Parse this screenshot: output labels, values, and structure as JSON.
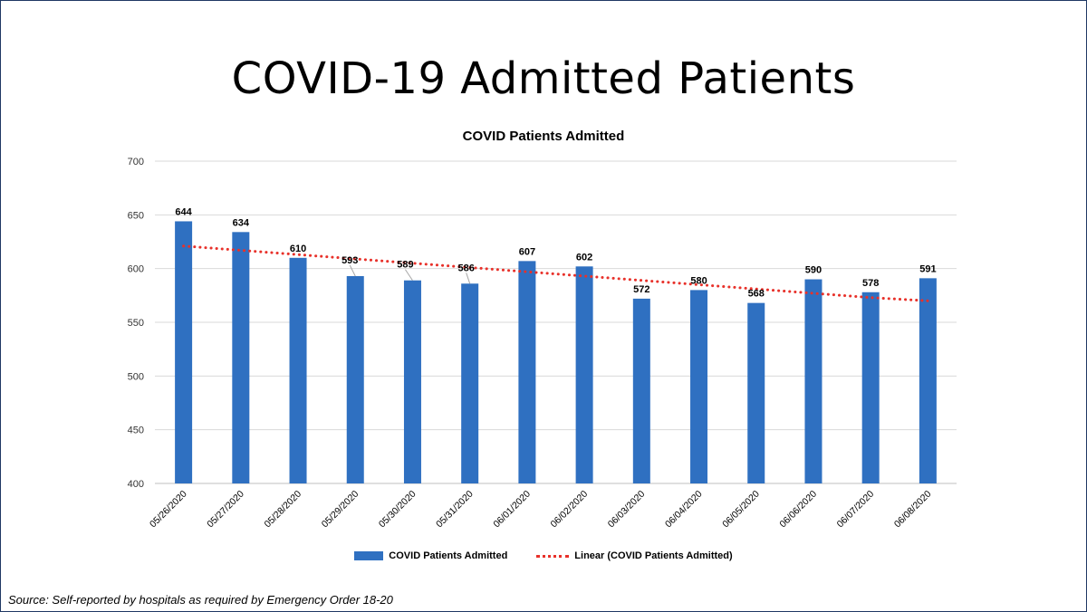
{
  "slide": {
    "title": "COVID-19 Admitted Patients",
    "source": "Source: Self-reported by hospitals as required by Emergency Order 18-20"
  },
  "chart_data": {
    "type": "bar",
    "title": "COVID Patients Admitted",
    "xlabel": "",
    "ylabel": "",
    "ylim": [
      400,
      700
    ],
    "yticks": [
      400,
      450,
      500,
      550,
      600,
      650,
      700
    ],
    "categories": [
      "05/26/2020",
      "05/27/2020",
      "05/28/2020",
      "05/29/2020",
      "05/30/2020",
      "05/31/2020",
      "06/01/2020",
      "06/02/2020",
      "06/03/2020",
      "06/04/2020",
      "06/05/2020",
      "06/06/2020",
      "06/07/2020",
      "06/08/2020"
    ],
    "series": [
      {
        "name": "COVID Patients Admitted",
        "type": "bar",
        "color": "#2f70c1",
        "values": [
          644,
          634,
          610,
          593,
          589,
          586,
          607,
          602,
          572,
          580,
          568,
          590,
          578,
          591
        ]
      },
      {
        "name": "Linear (COVID Patients Admitted)",
        "type": "trendline",
        "color": "#e8312a",
        "style": "dotted",
        "values": [
          621.0,
          617.0,
          613.0,
          609.0,
          605.0,
          601.0,
          597.0,
          593.0,
          589.0,
          585.0,
          581.0,
          577.0,
          573.0,
          570.0
        ]
      }
    ],
    "grid": true,
    "legend": "bottom",
    "data_labels": true
  }
}
